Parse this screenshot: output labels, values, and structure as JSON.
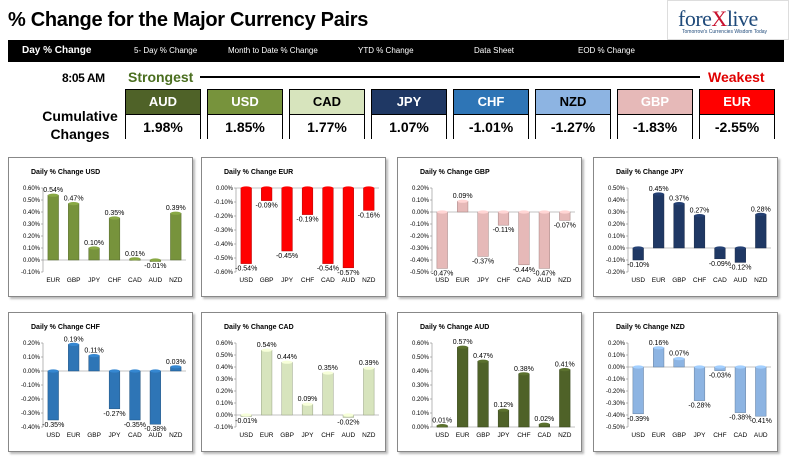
{
  "header": {
    "title": "% Change for the Major Currency Pairs",
    "logo_text": "forexlive",
    "logo_tagline": "Tomorrow's Currencies Wisdom Today"
  },
  "nav": {
    "items": [
      "Day % Change",
      "5- Day % Change",
      "Month to Date % Change",
      "YTD % Change",
      "Data Sheet",
      "EOD % Change"
    ]
  },
  "summary": {
    "time": "8:05 AM",
    "strongest": "Strongest",
    "weakest": "Weakest",
    "label": "Cumulative Changes",
    "currencies": [
      {
        "name": "AUD",
        "value": "1.98%",
        "color": "#4f6228",
        "text": "#ffffff"
      },
      {
        "name": "USD",
        "value": "1.85%",
        "color": "#77933c",
        "text": "#ffffff"
      },
      {
        "name": "CAD",
        "value": "1.77%",
        "color": "#d7e4bd",
        "text": "#000000"
      },
      {
        "name": "JPY",
        "value": "1.07%",
        "color": "#1f3864",
        "text": "#ffffff"
      },
      {
        "name": "CHF",
        "value": "-1.01%",
        "color": "#2e75b6",
        "text": "#ffffff"
      },
      {
        "name": "NZD",
        "value": "-1.27%",
        "color": "#8db4e2",
        "text": "#000000"
      },
      {
        "name": "GBP",
        "value": "-1.83%",
        "color": "#e6b9b8",
        "text": "#ffffff"
      },
      {
        "name": "EUR",
        "value": "-2.55%",
        "color": "#ff0000",
        "text": "#ffffff"
      }
    ]
  },
  "chart_data": [
    {
      "type": "bar",
      "title": "Daily % Change USD",
      "color": "#77933c",
      "categories": [
        "EUR",
        "GBP",
        "JPY",
        "CHF",
        "CAD",
        "AUD",
        "NZD"
      ],
      "values": [
        0.54,
        0.47,
        0.1,
        0.35,
        0.01,
        -0.01,
        0.39
      ],
      "labels": [
        "0.54%",
        "0.47%",
        "0.10%",
        "0.35%",
        "0.01%",
        "-0.01%",
        "0.39%"
      ],
      "ylim": [
        -0.1,
        0.6
      ],
      "ticks": [
        0.6,
        0.5,
        0.4,
        0.3,
        0.2,
        0.1,
        0.0,
        -0.1
      ],
      "tick_labels": [
        "0.60%",
        "0.50%",
        "0.40%",
        "0.30%",
        "0.20%",
        "0.10%",
        "0.00%",
        "-0.10%"
      ]
    },
    {
      "type": "bar",
      "title": "Daily % Change EUR",
      "color": "#ff0000",
      "categories": [
        "USD",
        "GBP",
        "JPY",
        "CHF",
        "CAD",
        "AUD",
        "NZD"
      ],
      "values": [
        -0.54,
        -0.09,
        -0.45,
        -0.19,
        -0.54,
        -0.57,
        -0.16
      ],
      "labels": [
        "-0.54%",
        "-0.09%",
        "-0.45%",
        "-0.19%",
        "-0.54%",
        "-0.57%",
        "-0.16%"
      ],
      "ylim": [
        -0.6,
        0.0
      ],
      "ticks": [
        0.0,
        -0.1,
        -0.2,
        -0.3,
        -0.4,
        -0.5,
        -0.6
      ],
      "tick_labels": [
        "0.00%",
        "-0.10%",
        "-0.20%",
        "-0.30%",
        "-0.40%",
        "-0.50%",
        "-0.60%"
      ]
    },
    {
      "type": "bar",
      "title": "Daily % Change GBP",
      "color": "#e6b9b8",
      "categories": [
        "USD",
        "EUR",
        "JPY",
        "CHF",
        "CAD",
        "AUD",
        "NZD"
      ],
      "values": [
        -0.47,
        0.09,
        -0.37,
        -0.11,
        -0.44,
        -0.47,
        -0.07
      ],
      "labels": [
        "-0.47%",
        "0.09%",
        "-0.37%",
        "-0.11%",
        "-0.44%",
        "-0.47%",
        "-0.07%"
      ],
      "ylim": [
        -0.5,
        0.2
      ],
      "ticks": [
        0.2,
        0.1,
        0.0,
        -0.1,
        -0.2,
        -0.3,
        -0.4,
        -0.5
      ],
      "tick_labels": [
        "0.20%",
        "0.10%",
        "0.00%",
        "-0.10%",
        "-0.20%",
        "-0.30%",
        "-0.40%",
        "-0.50%"
      ]
    },
    {
      "type": "bar",
      "title": "Daily % Change JPY",
      "color": "#1f3864",
      "categories": [
        "USD",
        "EUR",
        "GBP",
        "CHF",
        "CAD",
        "AUD",
        "NZD"
      ],
      "values": [
        -0.1,
        0.45,
        0.37,
        0.27,
        -0.09,
        -0.12,
        0.28
      ],
      "labels": [
        "-0.10%",
        "0.45%",
        "0.37%",
        "0.27%",
        "-0.09%",
        "-0.12%",
        "0.28%"
      ],
      "ylim": [
        -0.2,
        0.5
      ],
      "ticks": [
        0.5,
        0.4,
        0.3,
        0.2,
        0.1,
        0.0,
        -0.1,
        -0.2
      ],
      "tick_labels": [
        "0.50%",
        "0.40%",
        "0.30%",
        "0.20%",
        "0.10%",
        "0.00%",
        "-0.10%",
        "-0.20%"
      ]
    },
    {
      "type": "bar",
      "title": "Daily % Change CHF",
      "color": "#2e75b6",
      "categories": [
        "USD",
        "EUR",
        "GBP",
        "JPY",
        "CAD",
        "AUD",
        "NZD"
      ],
      "values": [
        -0.35,
        0.19,
        0.11,
        -0.27,
        -0.35,
        -0.38,
        0.03
      ],
      "labels": [
        "-0.35%",
        "0.19%",
        "0.11%",
        "-0.27%",
        "-0.35%",
        "-0.38%",
        "0.03%"
      ],
      "ylim": [
        -0.4,
        0.2
      ],
      "ticks": [
        0.2,
        0.1,
        0.0,
        -0.1,
        -0.2,
        -0.3,
        -0.4
      ],
      "tick_labels": [
        "0.20%",
        "0.10%",
        "0.00%",
        "-0.10%",
        "-0.20%",
        "-0.30%",
        "-0.40%"
      ]
    },
    {
      "type": "bar",
      "title": "Daily % Change CAD",
      "color": "#d7e4bd",
      "categories": [
        "USD",
        "EUR",
        "GBP",
        "JPY",
        "CHF",
        "AUD",
        "NZD"
      ],
      "values": [
        -0.01,
        0.54,
        0.44,
        0.09,
        0.35,
        -0.02,
        0.39
      ],
      "labels": [
        "-0.01%",
        "0.54%",
        "0.44%",
        "0.09%",
        "0.35%",
        "-0.02%",
        "0.39%"
      ],
      "ylim": [
        -0.1,
        0.6
      ],
      "ticks": [
        0.6,
        0.5,
        0.4,
        0.3,
        0.2,
        0.1,
        0.0,
        -0.1
      ],
      "tick_labels": [
        "0.60%",
        "0.50%",
        "0.40%",
        "0.30%",
        "0.20%",
        "0.10%",
        "0.00%",
        "-0.10%"
      ]
    },
    {
      "type": "bar",
      "title": "Daily % Change AUD",
      "color": "#4f6228",
      "categories": [
        "USD",
        "EUR",
        "GBP",
        "JPY",
        "CHF",
        "CAD",
        "NZD"
      ],
      "values": [
        0.01,
        0.57,
        0.47,
        0.12,
        0.38,
        0.02,
        0.41
      ],
      "labels": [
        "0.01%",
        "0.57%",
        "0.47%",
        "0.12%",
        "0.38%",
        "0.02%",
        "0.41%"
      ],
      "ylim": [
        0.0,
        0.6
      ],
      "ticks": [
        0.6,
        0.5,
        0.4,
        0.3,
        0.2,
        0.1,
        0.0
      ],
      "tick_labels": [
        "0.60%",
        "0.50%",
        "0.40%",
        "0.30%",
        "0.20%",
        "0.10%",
        "0.00%"
      ]
    },
    {
      "type": "bar",
      "title": "Daily % Change NZD",
      "color": "#8db4e2",
      "categories": [
        "USD",
        "EUR",
        "GBP",
        "JPY",
        "CHF",
        "CAD",
        "AUD"
      ],
      "values": [
        -0.39,
        0.16,
        0.07,
        -0.28,
        -0.03,
        -0.38,
        -0.41
      ],
      "labels": [
        "-0.39%",
        "0.16%",
        "0.07%",
        "-0.28%",
        "-0.03%",
        "-0.38%",
        "-0.41%"
      ],
      "ylim": [
        -0.5,
        0.2
      ],
      "ticks": [
        0.2,
        0.1,
        0.0,
        -0.1,
        -0.2,
        -0.3,
        -0.4,
        -0.5
      ],
      "tick_labels": [
        "0.20%",
        "0.10%",
        "0.00%",
        "-0.10%",
        "-0.20%",
        "-0.30%",
        "-0.40%",
        "-0.50%"
      ]
    }
  ]
}
